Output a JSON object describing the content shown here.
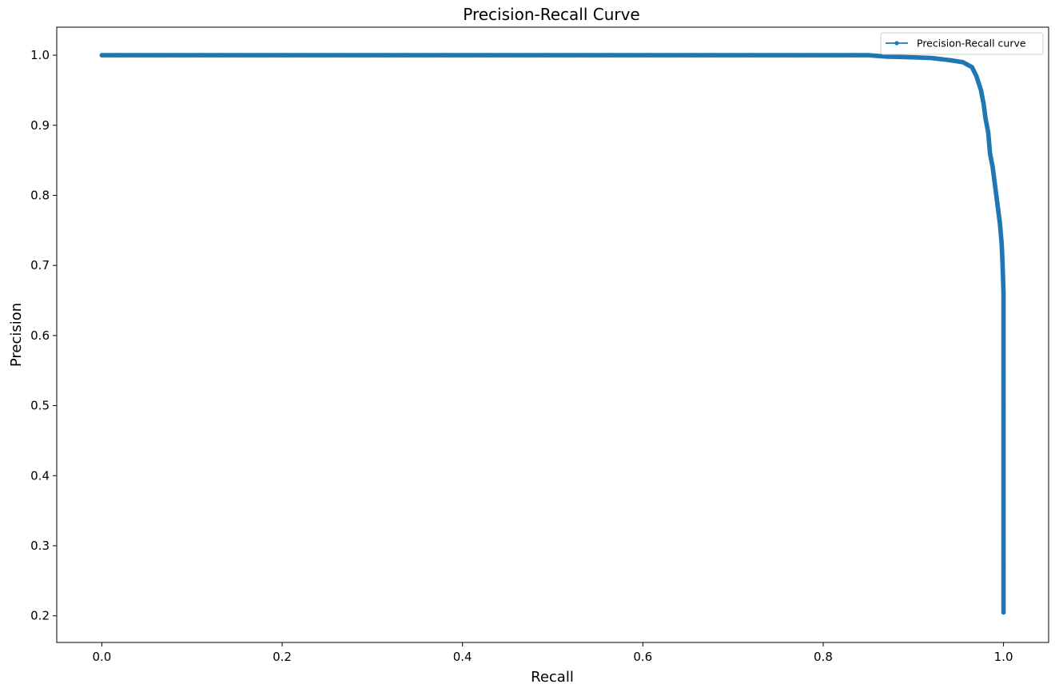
{
  "chart_data": {
    "type": "line",
    "title": "Precision-Recall Curve",
    "xlabel": "Recall",
    "ylabel": "Precision",
    "xlim": [
      -0.05,
      1.05
    ],
    "ylim": [
      0.162,
      1.04
    ],
    "xticks": [
      0.0,
      0.2,
      0.4,
      0.6,
      0.8,
      1.0
    ],
    "xtick_labels": [
      "0.0",
      "0.2",
      "0.4",
      "0.6",
      "0.8",
      "1.0"
    ],
    "yticks": [
      0.2,
      0.3,
      0.4,
      0.5,
      0.6,
      0.7,
      0.8,
      0.9,
      1.0
    ],
    "ytick_labels": [
      "0.2",
      "0.3",
      "0.4",
      "0.5",
      "0.6",
      "0.7",
      "0.8",
      "0.9",
      "1.0"
    ],
    "grid": false,
    "legend_position": "top-right",
    "series": [
      {
        "name": "Precision-Recall curve",
        "color": "#1f77b4",
        "marker": "circle",
        "x": [
          0.0,
          0.05,
          0.1,
          0.2,
          0.3,
          0.4,
          0.5,
          0.6,
          0.7,
          0.8,
          0.85,
          0.87,
          0.9,
          0.92,
          0.94,
          0.955,
          0.965,
          0.97,
          0.975,
          0.978,
          0.98,
          0.983,
          0.985,
          0.988,
          0.99,
          0.992,
          0.994,
          0.996,
          0.998,
          0.999,
          1.0,
          1.0,
          1.0,
          1.0,
          1.0,
          1.0,
          1.0
        ],
        "y": [
          1.0,
          1.0,
          1.0,
          1.0,
          1.0,
          1.0,
          1.0,
          1.0,
          1.0,
          1.0,
          1.0,
          0.998,
          0.997,
          0.996,
          0.993,
          0.99,
          0.983,
          0.97,
          0.95,
          0.93,
          0.91,
          0.89,
          0.86,
          0.84,
          0.82,
          0.8,
          0.78,
          0.76,
          0.73,
          0.7,
          0.66,
          0.6,
          0.5,
          0.4,
          0.3,
          0.22,
          0.205
        ]
      }
    ]
  }
}
